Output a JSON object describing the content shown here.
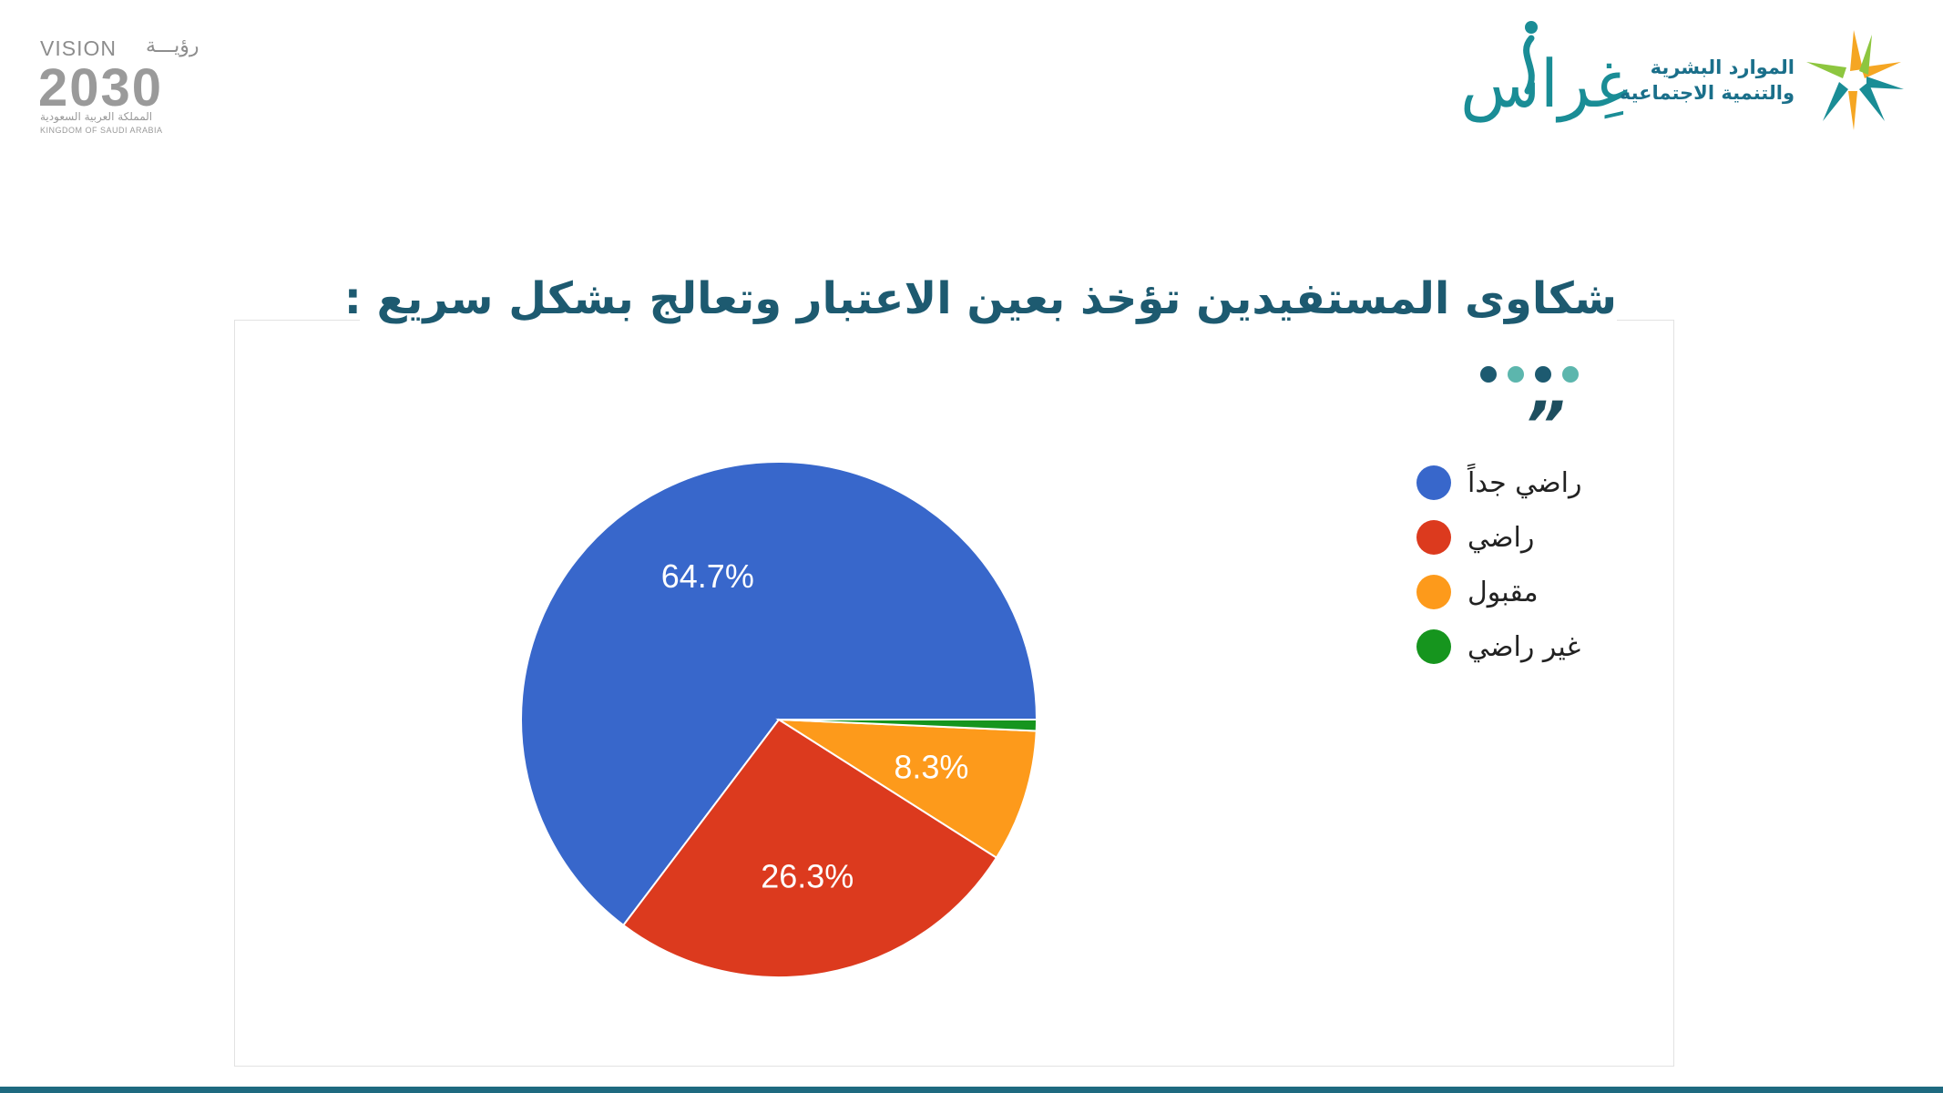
{
  "header": {
    "vision_logo": {
      "word": "VISION",
      "arabic": "رؤيـــة",
      "number": "2030",
      "country_ar": "المملكة العربية السعودية",
      "country_en": "KINGDOM OF SAUDI ARABIA"
    },
    "ghiras_logo": {
      "text": "غِراس"
    },
    "ministry_logo": {
      "line1": "الموارد البشرية",
      "line2": "والتنمية الاجتماعية"
    }
  },
  "slide": {
    "title": "شكاوى المستفيدين تؤخذ بعين الاعتبار وتعالج بشكل سريع :",
    "quote": "”"
  },
  "colors": {
    "title": "#1d5a70",
    "dot_dark": "#1d5a70",
    "dot_light": "#5cb6ad",
    "bottom_bar": "#1e6a80"
  },
  "chart_data": {
    "type": "pie",
    "title": "",
    "categories": [
      "راضي جداً",
      "راضي",
      "مقبول",
      "غير راضي"
    ],
    "values": [
      64.7,
      26.3,
      8.3,
      0.7
    ],
    "colors": [
      "#3867cb",
      "#dc3a1e",
      "#fd9a1b",
      "#16951e"
    ],
    "data_labels": [
      "64.7%",
      "26.3%",
      "8.3%",
      ""
    ],
    "legend_position": "right"
  }
}
